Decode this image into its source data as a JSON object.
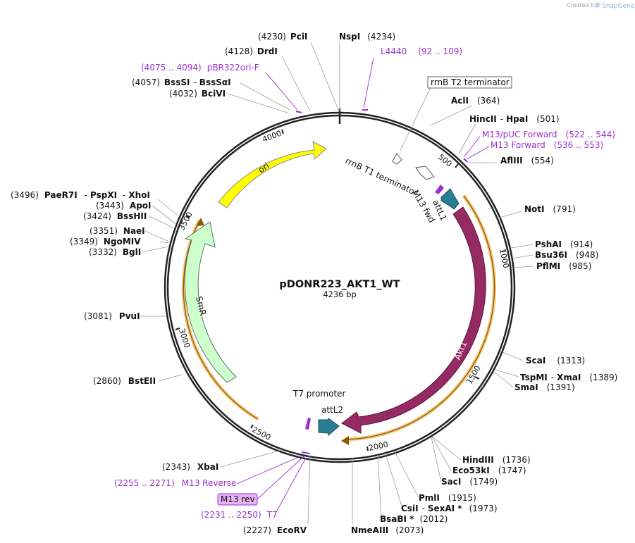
{
  "header": {
    "created_by": "Created by",
    "brand": "SnapGene"
  },
  "plasmid": {
    "name": "pDONR223_AKT1_WT",
    "size": "4236 bp"
  },
  "ticks": [
    "500",
    "1000",
    "1500",
    "2000",
    "2500",
    "3000",
    "3500",
    "4000"
  ],
  "features": {
    "ori": "ori",
    "smr": "SmR",
    "akt1": "Akt1",
    "rrnb_t1": "rrnB T1 terminator",
    "rrnb_t2": "rrnB T2 terminator",
    "m13_fwd": "M13 fwd",
    "attl1": "attL1",
    "t7_promoter": "T7 promoter",
    "attl2": "attL2",
    "m13_rev_box": "M13 rev"
  },
  "sites": {
    "pcii": {
      "name": "PciI",
      "pos": "(4230)"
    },
    "nspi": {
      "name": "NspI",
      "pos": "(4234)"
    },
    "drdi": {
      "name": "DrdI",
      "pos": "(4128)"
    },
    "bssi": {
      "name": "BssSI",
      "sep": "-",
      "name2": "BssSαI",
      "pos": "(4057)"
    },
    "bcivi": {
      "name": "BciVI",
      "pos": "(4032)"
    },
    "acli": {
      "name": "AclI",
      "pos": "(364)"
    },
    "hincii": {
      "name": "HincII",
      "sep": "-",
      "name2": "HpaI",
      "pos": "(501)"
    },
    "aflii": {
      "name": "AflIII",
      "pos": "(554)"
    },
    "noti": {
      "name": "NotI",
      "pos": "(791)"
    },
    "pshai": {
      "name": "PshAI",
      "pos": "(914)"
    },
    "bsu36i": {
      "name": "Bsu36I",
      "pos": "(948)"
    },
    "pflmi": {
      "name": "PflMI",
      "pos": "(985)"
    },
    "scai": {
      "name": "ScaI",
      "pos": "(1313)"
    },
    "tspmi": {
      "name": "TspMI",
      "sep": "-",
      "name2": "XmaI",
      "pos": "(1389)"
    },
    "smai": {
      "name": "SmaI",
      "pos": "(1391)"
    },
    "hindiii": {
      "name": "HindIII",
      "pos": "(1736)"
    },
    "eco53ki": {
      "name": "Eco53kI",
      "pos": "(1747)"
    },
    "saci": {
      "name": "SacI",
      "pos": "(1749)"
    },
    "pmli": {
      "name": "PmlI",
      "pos": "(1915)"
    },
    "csii": {
      "name": "CsiI",
      "sep": "-",
      "name2": "SexAI *",
      "pos": "(1973)"
    },
    "bsabi": {
      "name": "BsaBI *",
      "pos": "(2012)"
    },
    "nmeaiii": {
      "name": "NmeAIII",
      "pos": "(2073)"
    },
    "ecorv": {
      "name": "EcoRV",
      "pos": "(2227)"
    },
    "xbai": {
      "name": "XbaI",
      "pos": "(2343)"
    },
    "bsteii": {
      "name": "BstEII",
      "pos": "(2860)"
    },
    "pvui": {
      "name": "PvuI",
      "pos": "(3081)"
    },
    "bgli": {
      "name": "BglI",
      "pos": "(3332)"
    },
    "ngomiv": {
      "name": "NgoMIV",
      "pos": "(3349)"
    },
    "naei": {
      "name": "NaeI",
      "pos": "(3351)"
    },
    "bsshii": {
      "name": "BssHII",
      "pos": "(3424)"
    },
    "apoi": {
      "name": "ApoI",
      "pos": "(3443)"
    },
    "paer7i": {
      "name": "PaeR7I",
      "sep": "-",
      "name2": "PspXI",
      "sep2": "-",
      "name3": "XhoI",
      "pos": "(3496)"
    }
  },
  "primers": {
    "l4440": {
      "name": "L4440",
      "range": "(92 .. 109)"
    },
    "pbr322ori": {
      "name": "pBR322ori-F",
      "range": "(4075 .. 4094)"
    },
    "m13puc": {
      "name": "M13/pUC Forward",
      "range": "(522 .. 544)"
    },
    "m13fwd": {
      "name": "M13 Forward",
      "range": "(536 .. 553)"
    },
    "m13rev": {
      "name": "M13 Reverse",
      "range": "(2255 .. 2271)"
    },
    "t7": {
      "name": "T7",
      "range": "(2231 .. 2250)"
    }
  },
  "colors": {
    "backbone": "#222222",
    "ori": "#ffff00",
    "smr": "#ccffcc",
    "akt1": "#962a62",
    "att": "#2b7d94",
    "orf": "#f0a020",
    "primer": "#9b30d0"
  }
}
